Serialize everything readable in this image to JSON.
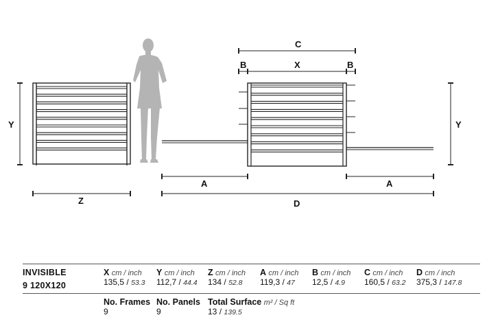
{
  "diagram": {
    "labels": {
      "y_left": "Y",
      "y_right": "Y",
      "z": "Z",
      "a_left": "A",
      "a_right": "A",
      "c": "C",
      "b_left": "B",
      "x": "X",
      "b_right": "B",
      "d": "D"
    }
  },
  "specs": {
    "product": "INVISIBLE",
    "model": "9 120X120",
    "sep": "/",
    "columns": [
      {
        "key": "X",
        "unit": "cm / inch",
        "cm": "135,5",
        "inch": "53.3"
      },
      {
        "key": "Y",
        "unit": "cm / inch",
        "cm": "112,7",
        "inch": "44.4"
      },
      {
        "key": "Z",
        "unit": "cm / inch",
        "cm": "134",
        "inch": "52.8"
      },
      {
        "key": "A",
        "unit": "cm / inch",
        "cm": "119,3",
        "inch": "47"
      },
      {
        "key": "B",
        "unit": "cm / inch",
        "cm": "12,5",
        "inch": "4.9"
      },
      {
        "key": "C",
        "unit": "cm / inch",
        "cm": "160,5",
        "inch": "63.2"
      },
      {
        "key": "D",
        "unit": "cm / inch",
        "cm": "375,3",
        "inch": "147.8"
      }
    ],
    "extra": [
      {
        "label": "No. Frames",
        "value": "9"
      },
      {
        "label": "No. Panels",
        "value": "9"
      },
      {
        "label": "Total Surface",
        "unit": "m² / Sq ft",
        "value": "13",
        "value_alt": "139.5"
      }
    ]
  }
}
